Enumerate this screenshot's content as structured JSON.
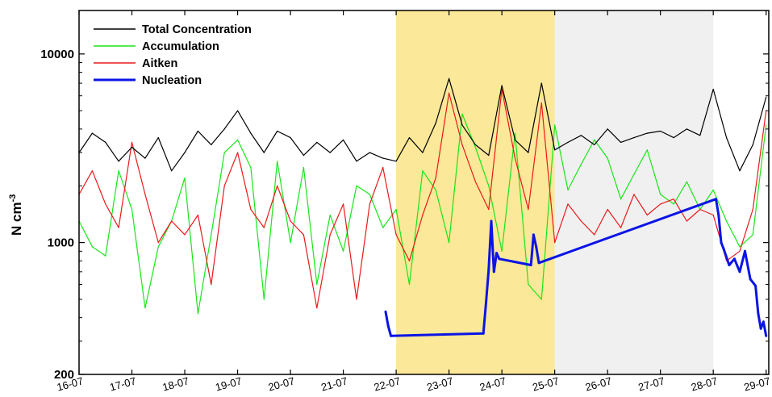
{
  "chart_data": {
    "type": "line",
    "title": "",
    "xlabel": "",
    "ylabel": "N cm",
    "ylabel_exponent": "-3",
    "yscale": "log",
    "ylim": [
      200,
      17000
    ],
    "y_ticks": [
      {
        "value": 200,
        "label": "200"
      },
      {
        "value": 1000,
        "label": "1000"
      },
      {
        "value": 10000,
        "label": "10000"
      }
    ],
    "xlim": [
      0,
      13.05
    ],
    "x_ticks": [
      {
        "value": 0,
        "label": "16-07"
      },
      {
        "value": 1,
        "label": "17-07"
      },
      {
        "value": 2,
        "label": "18-07"
      },
      {
        "value": 3,
        "label": "19-07"
      },
      {
        "value": 4,
        "label": "20-07"
      },
      {
        "value": 5,
        "label": "21-07"
      },
      {
        "value": 6,
        "label": "22-07"
      },
      {
        "value": 7,
        "label": "23-07"
      },
      {
        "value": 8,
        "label": "24-07"
      },
      {
        "value": 9,
        "label": "25-07"
      },
      {
        "value": 10,
        "label": "26-07"
      },
      {
        "value": 11,
        "label": "27-07"
      },
      {
        "value": 12,
        "label": "28-07"
      },
      {
        "value": 13,
        "label": "29-07"
      }
    ],
    "shaded_regions": [
      {
        "x0": 6.0,
        "x1": 9.0,
        "color": "#fbe898"
      },
      {
        "x0": 9.0,
        "x1": 12.0,
        "color": "#f0f0f0"
      }
    ],
    "grid": false,
    "legend_position": "top-left",
    "series": [
      {
        "name": "Total Concentration",
        "color": "#000000",
        "x": [
          0.0,
          0.25,
          0.5,
          0.75,
          1.0,
          1.25,
          1.5,
          1.75,
          2.0,
          2.25,
          2.5,
          2.75,
          3.0,
          3.25,
          3.5,
          3.75,
          4.0,
          4.25,
          4.5,
          4.75,
          5.0,
          5.25,
          5.5,
          5.75,
          6.0,
          6.25,
          6.5,
          6.75,
          7.0,
          7.25,
          7.5,
          7.75,
          8.0,
          8.25,
          8.5,
          8.75,
          9.0,
          9.25,
          9.5,
          9.75,
          10.0,
          10.25,
          10.5,
          10.75,
          11.0,
          11.25,
          11.5,
          11.75,
          12.0,
          12.25,
          12.5,
          12.75,
          13.0
        ],
        "y": [
          3000,
          3800,
          3400,
          2700,
          3200,
          2800,
          3600,
          2400,
          3000,
          3900,
          3300,
          4000,
          5000,
          3800,
          3000,
          3900,
          3600,
          2900,
          3400,
          3000,
          3500,
          2700,
          3000,
          2800,
          2700,
          3600,
          3000,
          4300,
          7400,
          4200,
          3300,
          2900,
          6800,
          3500,
          3000,
          7000,
          3100,
          3400,
          3700,
          3300,
          4000,
          3400,
          3600,
          3800,
          3900,
          3600,
          4000,
          3700,
          6500,
          3600,
          2400,
          3300,
          5900
        ]
      },
      {
        "name": "Accumulation",
        "color": "#19e619",
        "x": [
          0.0,
          0.25,
          0.5,
          0.75,
          1.0,
          1.25,
          1.5,
          1.75,
          2.0,
          2.25,
          2.5,
          2.75,
          3.0,
          3.25,
          3.5,
          3.75,
          4.0,
          4.25,
          4.5,
          4.75,
          5.0,
          5.25,
          5.5,
          5.75,
          6.0,
          6.25,
          6.5,
          6.75,
          7.0,
          7.25,
          7.5,
          7.75,
          8.0,
          8.25,
          8.5,
          8.75,
          9.0,
          9.25,
          9.5,
          9.75,
          10.0,
          10.25,
          10.5,
          10.75,
          11.0,
          11.25,
          11.5,
          11.75,
          12.0,
          12.25,
          12.5,
          12.75,
          13.0
        ],
        "y": [
          1300,
          950,
          850,
          2400,
          1500,
          450,
          950,
          1300,
          2200,
          420,
          1100,
          3000,
          3500,
          2500,
          500,
          2700,
          1000,
          2500,
          600,
          1400,
          900,
          2000,
          1800,
          1200,
          1500,
          600,
          2400,
          1900,
          1000,
          4800,
          3200,
          2000,
          900,
          3800,
          600,
          500,
          4200,
          1900,
          2600,
          3500,
          2800,
          1700,
          2300,
          3100,
          1800,
          1600,
          2100,
          1500,
          1900,
          1300,
          950,
          1100,
          4200
        ]
      },
      {
        "name": "Aitken",
        "color": "#e81a1a",
        "x": [
          0.0,
          0.25,
          0.5,
          0.75,
          1.0,
          1.25,
          1.5,
          1.75,
          2.0,
          2.25,
          2.5,
          2.75,
          3.0,
          3.25,
          3.5,
          3.75,
          4.0,
          4.25,
          4.5,
          4.75,
          5.0,
          5.25,
          5.5,
          5.75,
          6.0,
          6.25,
          6.5,
          6.75,
          7.0,
          7.25,
          7.5,
          7.75,
          8.0,
          8.25,
          8.5,
          8.75,
          9.0,
          9.25,
          9.5,
          9.75,
          10.0,
          10.25,
          10.5,
          10.75,
          11.0,
          11.25,
          11.5,
          11.75,
          12.0,
          12.25,
          12.5,
          12.75,
          13.0
        ],
        "y": [
          1800,
          2400,
          1600,
          1200,
          3400,
          1800,
          1000,
          1300,
          1100,
          1400,
          600,
          2000,
          3000,
          1500,
          1200,
          2000,
          1300,
          1100,
          450,
          1100,
          1600,
          500,
          1600,
          2500,
          1100,
          800,
          1400,
          2200,
          6200,
          3300,
          2100,
          1500,
          6500,
          2800,
          1500,
          5500,
          1000,
          1600,
          1300,
          1100,
          1500,
          1200,
          1800,
          1400,
          1600,
          1700,
          1300,
          1500,
          1400,
          800,
          900,
          1500,
          5000
        ]
      },
      {
        "name": "Nucleation",
        "color": "#0a14e6",
        "x": [
          5.8,
          5.85,
          5.9,
          7.65,
          7.7,
          7.75,
          7.8,
          7.85,
          7.9,
          7.95,
          8.55,
          8.6,
          8.65,
          8.7,
          12.05,
          12.1,
          12.15,
          12.2,
          12.3,
          12.4,
          12.5,
          12.6,
          12.7,
          12.8,
          12.85,
          12.9,
          12.95,
          13.0
        ],
        "y": [
          430,
          360,
          320,
          330,
          480,
          720,
          1300,
          700,
          880,
          820,
          760,
          1100,
          950,
          780,
          1700,
          1400,
          1000,
          920,
          760,
          820,
          700,
          900,
          640,
          590,
          420,
          350,
          380,
          320
        ]
      }
    ]
  }
}
